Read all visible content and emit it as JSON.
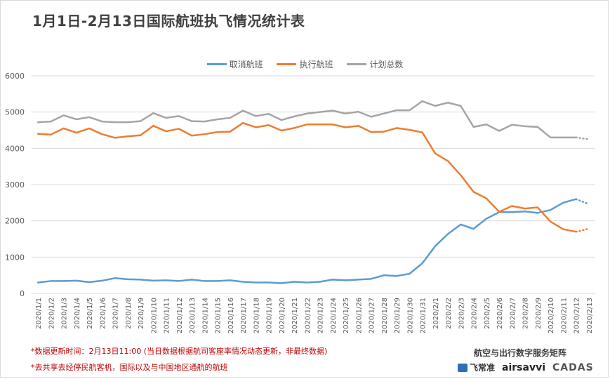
{
  "page": {
    "title": "1月1日-2月13日国际航班执飞情况统计表",
    "notes": [
      "*数据更新时间：2月13日11:00 (当日数据根据航司客座率情况动态更新，非最终数据)",
      "*去共享去经停民航客机，国际以及与中国地区通航的航班"
    ],
    "brand": "航空与出行数字服务矩阵",
    "logos": {
      "feichangzhun": "飞常准",
      "airsavvi": "airsavvi",
      "cadas": "CADAS"
    },
    "logo_icons": [
      "feichangzhun-logo-icon",
      "airsavvi-logo-icon",
      "cadas-logo-icon"
    ]
  },
  "chart_data": {
    "type": "line",
    "title": "1月1日-2月13日国际航班执飞情况统计表",
    "xlabel": "",
    "ylabel": "",
    "ylim": [
      0,
      6000
    ],
    "yticks": [
      0,
      1000,
      2000,
      3000,
      4000,
      5000,
      6000
    ],
    "grid": true,
    "legend_position": "top-center",
    "categories": [
      "2020/1/1",
      "2020/1/2",
      "2020/1/3",
      "2020/1/4",
      "2020/1/5",
      "2020/1/6",
      "2020/1/7",
      "2020/1/8",
      "2020/1/9",
      "2020/1/10",
      "2020/1/11",
      "2020/1/12",
      "2020/1/13",
      "2020/1/14",
      "2020/1/15",
      "2020/1/16",
      "2020/1/17",
      "2020/1/18",
      "2020/1/19",
      "2020/1/20",
      "2020/1/21",
      "2020/1/22",
      "2020/1/23",
      "2020/1/24",
      "2020/1/25",
      "2020/1/26",
      "2020/1/27",
      "2020/1/28",
      "2020/1/29",
      "2020/1/30",
      "2020/1/31",
      "2020/2/1",
      "2020/2/2",
      "2020/2/3",
      "2020/2/4",
      "2020/2/5",
      "2020/2/6",
      "2020/2/7",
      "2020/2/8",
      "2020/2/9",
      "2020/2/10",
      "2020/2/11",
      "2020/2/12",
      "2020/2/13"
    ],
    "series": [
      {
        "name": "取消航班",
        "color": "#5b9bd5",
        "values": [
          300,
          340,
          340,
          350,
          310,
          350,
          420,
          390,
          380,
          350,
          360,
          340,
          380,
          340,
          340,
          360,
          320,
          300,
          300,
          280,
          320,
          300,
          320,
          380,
          360,
          380,
          400,
          500,
          480,
          540,
          830,
          1300,
          1640,
          1900,
          1780,
          2060,
          2240,
          2240,
          2260,
          2220,
          2300,
          2500,
          2600,
          2460
        ]
      },
      {
        "name": "执行航班",
        "color": "#ed7d31",
        "values": [
          4400,
          4380,
          4550,
          4430,
          4550,
          4390,
          4290,
          4330,
          4360,
          4620,
          4470,
          4540,
          4350,
          4390,
          4450,
          4460,
          4700,
          4580,
          4640,
          4490,
          4560,
          4660,
          4660,
          4660,
          4580,
          4620,
          4450,
          4460,
          4560,
          4510,
          4440,
          3860,
          3650,
          3260,
          2800,
          2620,
          2250,
          2410,
          2340,
          2370,
          1980,
          1770,
          1700,
          1780
        ]
      },
      {
        "name": "计划总数",
        "color": "#a5a5a5",
        "values": [
          4720,
          4740,
          4910,
          4800,
          4860,
          4740,
          4720,
          4720,
          4750,
          4970,
          4840,
          4890,
          4750,
          4740,
          4800,
          4840,
          5040,
          4890,
          4950,
          4780,
          4880,
          4960,
          5000,
          5040,
          4960,
          5010,
          4870,
          4960,
          5050,
          5050,
          5300,
          5170,
          5260,
          5170,
          4590,
          4660,
          4480,
          4650,
          4610,
          4590,
          4300,
          4300,
          4300,
          4250
        ]
      }
    ],
    "dotted_last_segment": true
  }
}
